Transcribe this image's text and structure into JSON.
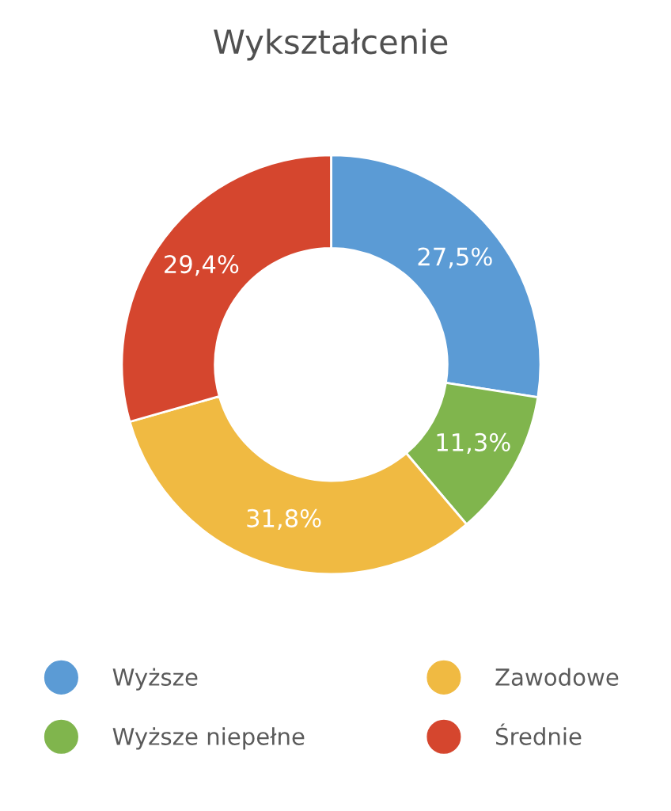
{
  "chart_data": {
    "type": "donut",
    "title": "Wykształcenie",
    "categories": [
      "Wyższe",
      "Wyższe niepełne",
      "Zawodowe",
      "Średnie"
    ],
    "values": [
      27.5,
      11.3,
      31.8,
      29.4
    ],
    "colors": [
      "#5b9bd5",
      "#80b54d",
      "#f0ba42",
      "#d5462e"
    ],
    "value_labels": [
      "27,5%",
      "11,3%",
      "31,8%",
      "29,4%"
    ],
    "legend": "bottom"
  }
}
